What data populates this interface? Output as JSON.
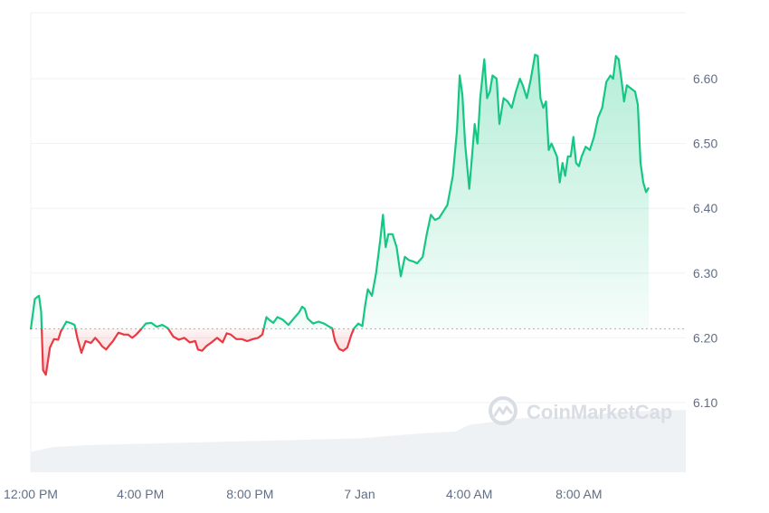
{
  "chart_data": {
    "type": "area",
    "title": "",
    "xlabel": "",
    "ylabel": "",
    "baseline": 6.214,
    "ylim": [
      6.0,
      6.7
    ],
    "yticks": [
      {
        "value": 6.1,
        "label": "6.10"
      },
      {
        "value": 6.2,
        "label": "6.20"
      },
      {
        "value": 6.3,
        "label": "6.30"
      },
      {
        "value": 6.4,
        "label": "6.40"
      },
      {
        "value": 6.5,
        "label": "6.50"
      },
      {
        "value": 6.6,
        "label": "6.60"
      }
    ],
    "xticks": [
      {
        "hour": 0,
        "label": "12:00 PM"
      },
      {
        "hour": 4,
        "label": "4:00 PM"
      },
      {
        "hour": 8,
        "label": "8:00 PM"
      },
      {
        "hour": 12,
        "label": "7 Jan"
      },
      {
        "hour": 16,
        "label": "4:00 AM"
      },
      {
        "hour": 20,
        "label": "8:00 AM"
      }
    ],
    "xrange_hours": [
      0,
      23.9
    ],
    "grid": true,
    "colors": {
      "up": "#16c784",
      "down": "#ea3943",
      "grid": "#eff2f5",
      "volume": "#eff2f5",
      "baseline": "#a6b0c3"
    },
    "series": [
      {
        "points": [
          [
            0.0,
            6.213
          ],
          [
            0.15,
            6.26
          ],
          [
            0.3,
            6.265
          ],
          [
            0.38,
            6.24
          ],
          [
            0.45,
            6.15
          ],
          [
            0.55,
            6.143
          ],
          [
            0.7,
            6.185
          ],
          [
            0.85,
            6.198
          ],
          [
            1.0,
            6.197
          ],
          [
            1.1,
            6.21
          ],
          [
            1.3,
            6.225
          ],
          [
            1.5,
            6.222
          ],
          [
            1.6,
            6.22
          ],
          [
            1.7,
            6.2
          ],
          [
            1.85,
            6.177
          ],
          [
            2.0,
            6.195
          ],
          [
            2.2,
            6.192
          ],
          [
            2.35,
            6.2
          ],
          [
            2.5,
            6.193
          ],
          [
            2.6,
            6.187
          ],
          [
            2.75,
            6.182
          ],
          [
            2.9,
            6.19
          ],
          [
            3.0,
            6.195
          ],
          [
            3.2,
            6.208
          ],
          [
            3.4,
            6.205
          ],
          [
            3.55,
            6.205
          ],
          [
            3.7,
            6.2
          ],
          [
            3.85,
            6.205
          ],
          [
            4.0,
            6.212
          ],
          [
            4.2,
            6.222
          ],
          [
            4.4,
            6.223
          ],
          [
            4.6,
            6.217
          ],
          [
            4.8,
            6.22
          ],
          [
            5.0,
            6.215
          ],
          [
            5.2,
            6.202
          ],
          [
            5.4,
            6.197
          ],
          [
            5.6,
            6.2
          ],
          [
            5.8,
            6.193
          ],
          [
            6.0,
            6.195
          ],
          [
            6.1,
            6.182
          ],
          [
            6.25,
            6.18
          ],
          [
            6.4,
            6.187
          ],
          [
            6.6,
            6.193
          ],
          [
            6.8,
            6.2
          ],
          [
            7.0,
            6.193
          ],
          [
            7.15,
            6.207
          ],
          [
            7.3,
            6.205
          ],
          [
            7.5,
            6.198
          ],
          [
            7.7,
            6.198
          ],
          [
            7.9,
            6.195
          ],
          [
            8.1,
            6.198
          ],
          [
            8.3,
            6.2
          ],
          [
            8.45,
            6.205
          ],
          [
            8.6,
            6.232
          ],
          [
            8.7,
            6.228
          ],
          [
            8.85,
            6.223
          ],
          [
            9.0,
            6.232
          ],
          [
            9.2,
            6.228
          ],
          [
            9.4,
            6.22
          ],
          [
            9.6,
            6.23
          ],
          [
            9.8,
            6.24
          ],
          [
            9.9,
            6.248
          ],
          [
            10.0,
            6.245
          ],
          [
            10.1,
            6.23
          ],
          [
            10.3,
            6.222
          ],
          [
            10.5,
            6.225
          ],
          [
            10.7,
            6.222
          ],
          [
            10.9,
            6.217
          ],
          [
            11.0,
            6.215
          ],
          [
            11.1,
            6.195
          ],
          [
            11.25,
            6.183
          ],
          [
            11.4,
            6.18
          ],
          [
            11.55,
            6.185
          ],
          [
            11.7,
            6.205
          ],
          [
            11.8,
            6.215
          ],
          [
            11.95,
            6.222
          ],
          [
            12.1,
            6.218
          ],
          [
            12.2,
            6.25
          ],
          [
            12.3,
            6.275
          ],
          [
            12.45,
            6.265
          ],
          [
            12.6,
            6.3
          ],
          [
            12.75,
            6.35
          ],
          [
            12.85,
            6.39
          ],
          [
            12.95,
            6.34
          ],
          [
            13.05,
            6.36
          ],
          [
            13.2,
            6.36
          ],
          [
            13.35,
            6.34
          ],
          [
            13.5,
            6.295
          ],
          [
            13.65,
            6.325
          ],
          [
            13.8,
            6.32
          ],
          [
            13.95,
            6.318
          ],
          [
            14.1,
            6.315
          ],
          [
            14.3,
            6.325
          ],
          [
            14.45,
            6.36
          ],
          [
            14.6,
            6.39
          ],
          [
            14.75,
            6.382
          ],
          [
            14.9,
            6.385
          ],
          [
            15.05,
            6.395
          ],
          [
            15.2,
            6.405
          ],
          [
            15.4,
            6.45
          ],
          [
            15.55,
            6.52
          ],
          [
            15.65,
            6.605
          ],
          [
            15.75,
            6.575
          ],
          [
            15.85,
            6.5
          ],
          [
            16.0,
            6.43
          ],
          [
            16.1,
            6.48
          ],
          [
            16.2,
            6.53
          ],
          [
            16.3,
            6.5
          ],
          [
            16.4,
            6.57
          ],
          [
            16.55,
            6.63
          ],
          [
            16.65,
            6.57
          ],
          [
            16.75,
            6.58
          ],
          [
            16.85,
            6.605
          ],
          [
            17.0,
            6.6
          ],
          [
            17.1,
            6.53
          ],
          [
            17.25,
            6.57
          ],
          [
            17.4,
            6.565
          ],
          [
            17.55,
            6.555
          ],
          [
            17.7,
            6.58
          ],
          [
            17.85,
            6.6
          ],
          [
            17.95,
            6.59
          ],
          [
            18.1,
            6.57
          ],
          [
            18.25,
            6.6
          ],
          [
            18.4,
            6.637
          ],
          [
            18.5,
            6.635
          ],
          [
            18.6,
            6.57
          ],
          [
            18.7,
            6.555
          ],
          [
            18.8,
            6.565
          ],
          [
            18.9,
            6.49
          ],
          [
            19.0,
            6.5
          ],
          [
            19.1,
            6.49
          ],
          [
            19.2,
            6.48
          ],
          [
            19.3,
            6.44
          ],
          [
            19.4,
            6.47
          ],
          [
            19.5,
            6.45
          ],
          [
            19.6,
            6.48
          ],
          [
            19.7,
            6.48
          ],
          [
            19.8,
            6.51
          ],
          [
            19.9,
            6.47
          ],
          [
            20.0,
            6.465
          ],
          [
            20.1,
            6.48
          ],
          [
            20.25,
            6.495
          ],
          [
            20.4,
            6.49
          ],
          [
            20.55,
            6.51
          ],
          [
            20.7,
            6.54
          ],
          [
            20.85,
            6.555
          ],
          [
            21.0,
            6.595
          ],
          [
            21.15,
            6.605
          ],
          [
            21.25,
            6.6
          ],
          [
            21.35,
            6.635
          ],
          [
            21.45,
            6.63
          ],
          [
            21.55,
            6.6
          ],
          [
            21.65,
            6.565
          ],
          [
            21.75,
            6.59
          ],
          [
            21.9,
            6.585
          ],
          [
            22.05,
            6.58
          ],
          [
            22.15,
            6.56
          ],
          [
            22.25,
            6.47
          ],
          [
            22.35,
            6.44
          ],
          [
            22.45,
            6.425
          ],
          [
            22.55,
            6.432
          ]
        ]
      }
    ],
    "volume_series": {
      "points": [
        [
          0.0,
          0.03
        ],
        [
          0.8,
          0.037
        ],
        [
          1.2,
          0.038
        ],
        [
          2.0,
          0.04
        ],
        [
          4.0,
          0.042
        ],
        [
          6.0,
          0.044
        ],
        [
          8.0,
          0.046
        ],
        [
          10.0,
          0.048
        ],
        [
          12.0,
          0.05
        ],
        [
          13.5,
          0.055
        ],
        [
          14.5,
          0.058
        ],
        [
          15.5,
          0.06
        ],
        [
          16.0,
          0.07
        ],
        [
          17.0,
          0.075
        ],
        [
          18.0,
          0.08
        ],
        [
          20.0,
          0.083
        ],
        [
          22.0,
          0.09
        ],
        [
          23.9,
          0.092
        ]
      ]
    }
  },
  "watermark": {
    "icon": "coinmarketcap-logo-icon",
    "text": "CoinMarketCap"
  }
}
